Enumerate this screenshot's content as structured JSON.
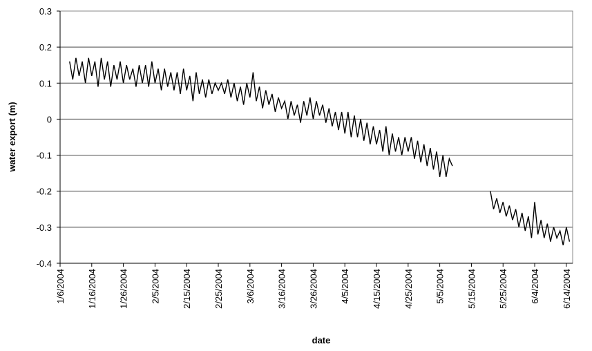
{
  "chart_data": {
    "type": "line",
    "x_label": "date",
    "y_label": "water export (m)",
    "xlim": [
      "1/6/2004",
      "6/16/2004"
    ],
    "xticks": [
      "1/6/2004",
      "1/16/2004",
      "1/26/2004",
      "2/5/2004",
      "2/15/2004",
      "2/25/2004",
      "3/6/2004",
      "3/16/2004",
      "3/26/2004",
      "4/5/2004",
      "4/15/2004",
      "4/25/2004",
      "5/5/2004",
      "5/15/2004",
      "5/25/2004",
      "6/4/2004",
      "6/14/2004"
    ],
    "ylim": [
      -0.4,
      0.3
    ],
    "yticks": [
      -0.4,
      -0.3,
      -0.2,
      -0.1,
      0,
      0.1,
      0.2,
      0.3
    ],
    "grid": true,
    "x": [
      "1/9/2004",
      "1/10/2004",
      "1/11/2004",
      "1/12/2004",
      "1/13/2004",
      "1/14/2004",
      "1/15/2004",
      "1/16/2004",
      "1/17/2004",
      "1/18/2004",
      "1/19/2004",
      "1/20/2004",
      "1/21/2004",
      "1/22/2004",
      "1/23/2004",
      "1/24/2004",
      "1/25/2004",
      "1/26/2004",
      "1/27/2004",
      "1/28/2004",
      "1/29/2004",
      "1/30/2004",
      "1/31/2004",
      "2/1/2004",
      "2/2/2004",
      "2/3/2004",
      "2/4/2004",
      "2/5/2004",
      "2/6/2004",
      "2/7/2004",
      "2/8/2004",
      "2/9/2004",
      "2/10/2004",
      "2/11/2004",
      "2/12/2004",
      "2/13/2004",
      "2/14/2004",
      "2/15/2004",
      "2/16/2004",
      "2/17/2004",
      "2/18/2004",
      "2/19/2004",
      "2/20/2004",
      "2/21/2004",
      "2/22/2004",
      "2/23/2004",
      "2/24/2004",
      "2/25/2004",
      "2/26/2004",
      "2/27/2004",
      "2/28/2004",
      "2/29/2004",
      "3/1/2004",
      "3/2/2004",
      "3/3/2004",
      "3/4/2004",
      "3/5/2004",
      "3/6/2004",
      "3/7/2004",
      "3/8/2004",
      "3/9/2004",
      "3/10/2004",
      "3/11/2004",
      "3/12/2004",
      "3/13/2004",
      "3/14/2004",
      "3/15/2004",
      "3/16/2004",
      "3/17/2004",
      "3/18/2004",
      "3/19/2004",
      "3/20/2004",
      "3/21/2004",
      "3/22/2004",
      "3/23/2004",
      "3/24/2004",
      "3/25/2004",
      "3/26/2004",
      "3/27/2004",
      "3/28/2004",
      "3/29/2004",
      "3/30/2004",
      "3/31/2004",
      "4/1/2004",
      "4/2/2004",
      "4/3/2004",
      "4/4/2004",
      "4/5/2004",
      "4/6/2004",
      "4/7/2004",
      "4/8/2004",
      "4/9/2004",
      "4/10/2004",
      "4/11/2004",
      "4/12/2004",
      "4/13/2004",
      "4/14/2004",
      "4/15/2004",
      "4/16/2004",
      "4/17/2004",
      "4/18/2004",
      "4/19/2004",
      "4/20/2004",
      "4/21/2004",
      "4/22/2004",
      "4/23/2004",
      "4/24/2004",
      "4/25/2004",
      "4/26/2004",
      "4/27/2004",
      "4/28/2004",
      "4/29/2004",
      "4/30/2004",
      "5/1/2004",
      "5/2/2004",
      "5/3/2004",
      "5/4/2004",
      "5/5/2004",
      "5/6/2004",
      "5/7/2004",
      "5/8/2004",
      "5/9/2004",
      "5/15/2004",
      "5/21/2004",
      "5/22/2004",
      "5/23/2004",
      "5/24/2004",
      "5/25/2004",
      "5/26/2004",
      "5/27/2004",
      "5/28/2004",
      "5/29/2004",
      "5/30/2004",
      "5/31/2004",
      "6/1/2004",
      "6/2/2004",
      "6/3/2004",
      "6/4/2004",
      "6/5/2004",
      "6/6/2004",
      "6/7/2004",
      "6/8/2004",
      "6/9/2004",
      "6/10/2004",
      "6/11/2004",
      "6/12/2004",
      "6/13/2004",
      "6/14/2004",
      "6/15/2004"
    ],
    "series": [
      {
        "name": "water export",
        "color": "#000000",
        "values": [
          0.16,
          0.11,
          0.17,
          0.12,
          0.16,
          0.1,
          0.17,
          0.12,
          0.16,
          0.09,
          0.17,
          0.11,
          0.16,
          0.09,
          0.15,
          0.11,
          0.16,
          0.1,
          0.15,
          0.11,
          0.14,
          0.09,
          0.15,
          0.1,
          0.15,
          0.09,
          0.16,
          0.1,
          0.14,
          0.08,
          0.14,
          0.09,
          0.13,
          0.08,
          0.13,
          0.07,
          0.14,
          0.08,
          0.12,
          0.05,
          0.13,
          0.07,
          0.11,
          0.06,
          0.11,
          0.07,
          0.1,
          0.08,
          0.1,
          0.07,
          0.11,
          0.06,
          0.1,
          0.05,
          0.09,
          0.04,
          0.1,
          0.06,
          0.13,
          0.05,
          0.09,
          0.03,
          0.08,
          0.04,
          0.07,
          0.02,
          0.06,
          0.03,
          0.05,
          0.0,
          0.05,
          0.01,
          0.04,
          -0.01,
          0.05,
          0.01,
          0.06,
          0.0,
          0.05,
          0.01,
          0.04,
          -0.01,
          0.03,
          -0.02,
          0.02,
          -0.03,
          0.02,
          -0.04,
          0.02,
          -0.05,
          0.01,
          -0.05,
          0.0,
          -0.06,
          -0.01,
          -0.07,
          -0.02,
          -0.07,
          -0.03,
          -0.09,
          -0.02,
          -0.1,
          -0.04,
          -0.09,
          -0.05,
          -0.1,
          -0.05,
          -0.09,
          -0.05,
          -0.11,
          -0.06,
          -0.12,
          -0.07,
          -0.13,
          -0.08,
          -0.14,
          -0.09,
          -0.16,
          -0.1,
          -0.16,
          -0.11,
          -0.13,
          null,
          -0.2,
          -0.25,
          -0.22,
          -0.26,
          -0.23,
          -0.27,
          -0.24,
          -0.28,
          -0.25,
          -0.3,
          -0.26,
          -0.31,
          -0.27,
          -0.33,
          -0.23,
          -0.32,
          -0.28,
          -0.33,
          -0.29,
          -0.34,
          -0.3,
          -0.33,
          -0.31,
          -0.35,
          -0.3,
          -0.34
        ]
      }
    ]
  }
}
